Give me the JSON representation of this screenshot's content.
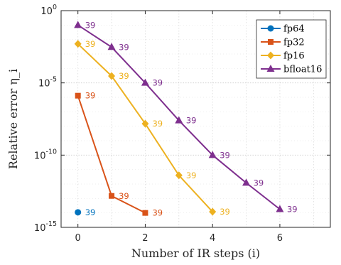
{
  "chart_data": {
    "type": "line",
    "xlabel": "Number of IR steps (i)",
    "ylabel": "Relative error η_i",
    "y_scale": "log",
    "xlim": [
      -0.5,
      7.5
    ],
    "ylim": [
      1e-15,
      1
    ],
    "x_ticks": [
      0,
      2,
      4,
      6
    ],
    "x_tick_labels": [
      "0",
      "2",
      "4",
      "6"
    ],
    "y_ticks": [
      1e-15,
      1e-10,
      1e-05,
      1
    ],
    "y_tick_labels": [
      {
        "base": "10",
        "exp": "-15"
      },
      {
        "base": "10",
        "exp": "-10"
      },
      {
        "base": "10",
        "exp": "-5"
      },
      {
        "base": "10",
        "exp": "0"
      }
    ],
    "grid": true,
    "legend_position": "top-right",
    "series": [
      {
        "name": "fp64",
        "color": "#0072BD",
        "marker": "circle",
        "x": [
          0
        ],
        "y": [
          1.1e-14
        ],
        "labels": [
          "39"
        ]
      },
      {
        "name": "fp32",
        "color": "#D95319",
        "marker": "square",
        "x": [
          0,
          1,
          2
        ],
        "y": [
          1.3e-06,
          1.5e-13,
          1e-14
        ],
        "labels": [
          "39",
          "39",
          "39"
        ]
      },
      {
        "name": "fp16",
        "color": "#EDB120",
        "marker": "diamond",
        "x": [
          0,
          1,
          2,
          3,
          4
        ],
        "y": [
          0.005,
          3e-05,
          1.5e-08,
          4e-12,
          1.2e-14
        ],
        "labels": [
          "39",
          "39",
          "39",
          "39",
          "39"
        ]
      },
      {
        "name": "bfloat16",
        "color": "#7E2F8E",
        "marker": "triangle",
        "x": [
          0,
          1,
          2,
          3,
          4,
          5,
          6
        ],
        "y": [
          0.1,
          0.003,
          1e-05,
          2.5e-08,
          1e-10,
          1.2e-12,
          1.8e-14
        ],
        "labels": [
          "39",
          "39",
          "39",
          "39",
          "39",
          "39",
          "39"
        ]
      }
    ]
  }
}
